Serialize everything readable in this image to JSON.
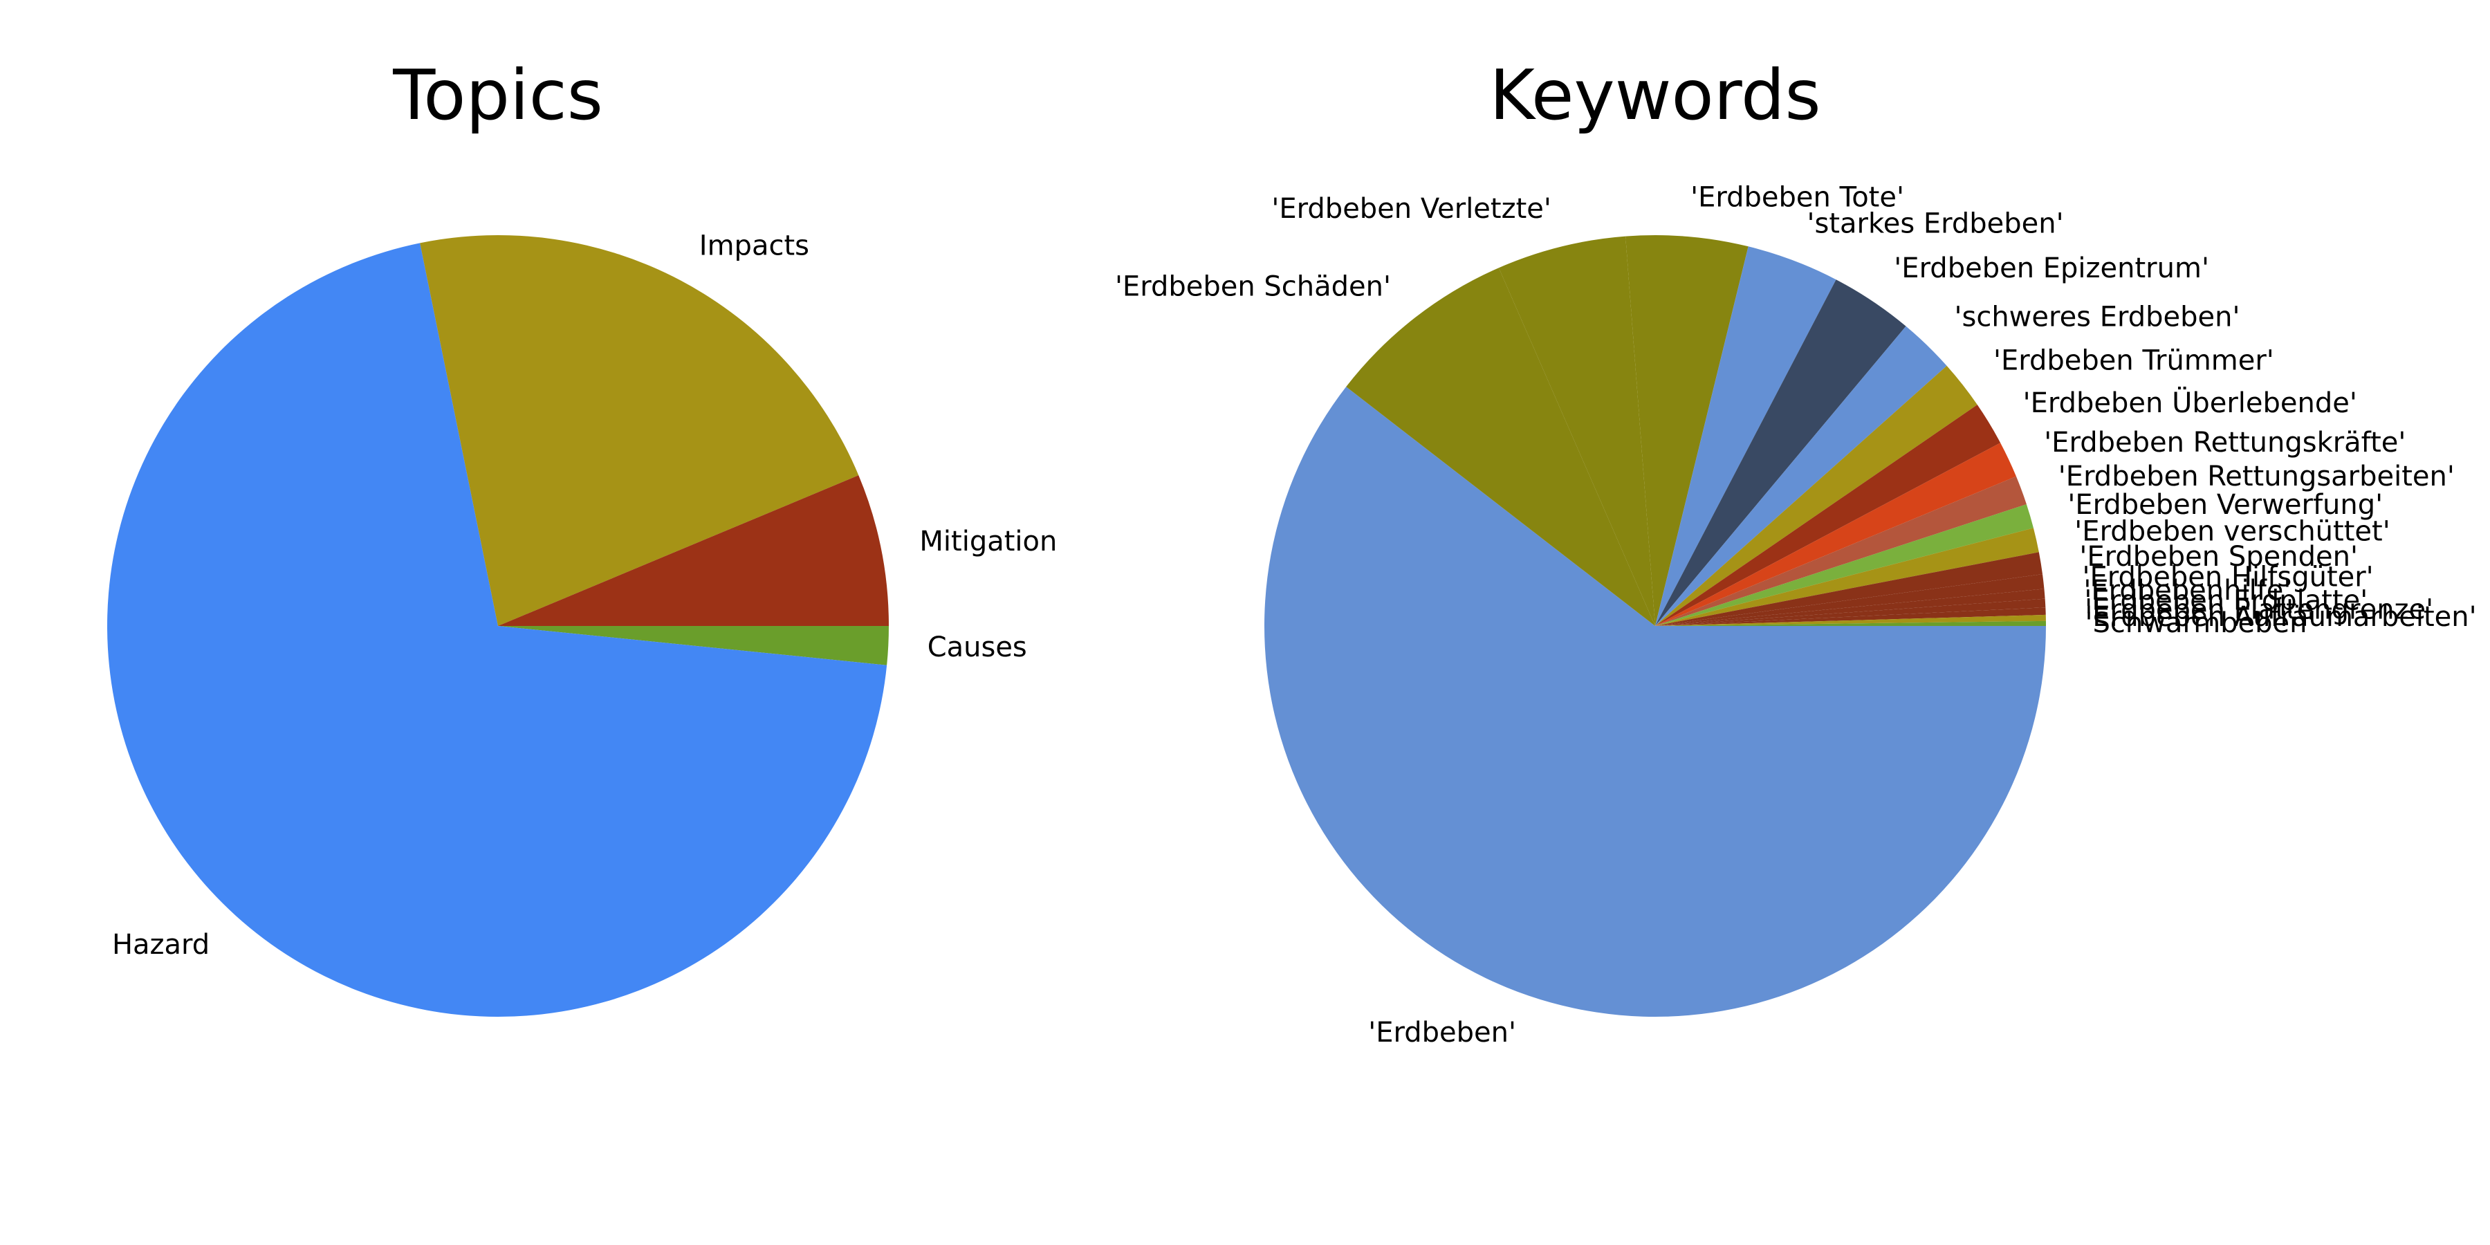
{
  "chart_data": [
    {
      "type": "pie",
      "title": "Topics",
      "start_angle_deg": 0,
      "direction": "clockwise",
      "slices": [
        {
          "label": "Causes",
          "value": 1.6,
          "color": "#6a9e2b"
        },
        {
          "label": "Hazard",
          "value": 70.2,
          "color": "#4387f4"
        },
        {
          "label": "Impacts",
          "value": 21.9,
          "color": "#a69316"
        },
        {
          "label": "Mitigation",
          "value": 6.3,
          "color": "#9c3216"
        }
      ]
    },
    {
      "type": "pie",
      "title": "Keywords",
      "start_angle_deg": 0,
      "direction": "clockwise",
      "slices": [
        {
          "label": "'Erdbeben'",
          "value": 60.0,
          "color": "#6490d4"
        },
        {
          "label": "'Erdbeben Schäden'",
          "value": 7.9,
          "color": "#878510"
        },
        {
          "label": "'Erdbeben Verletzte'",
          "value": 5.3,
          "color": "#878510"
        },
        {
          "label": "'Erdbeben Tote'",
          "value": 5.0,
          "color": "#878510"
        },
        {
          "label": "'starkes Erdbeben'",
          "value": 3.8,
          "color": "#6490d4"
        },
        {
          "label": "'Erdbeben Epizentrum'",
          "value": 3.4,
          "color": "#394963"
        },
        {
          "label": "'schweres Erdbeben'",
          "value": 2.3,
          "color": "#6490d4"
        },
        {
          "label": "'Erdbeben Trümmer'",
          "value": 2.0,
          "color": "#a69316"
        },
        {
          "label": "'Erdbeben Überlebende'",
          "value": 1.8,
          "color": "#9c3216"
        },
        {
          "label": "'Erdbeben Rettungskräfte'",
          "value": 1.5,
          "color": "#d74419"
        },
        {
          "label": "'Erdbeben Rettungsarbeiten'",
          "value": 1.2,
          "color": "#b4563c"
        },
        {
          "label": "'Erdbeben Verwerfung'",
          "value": 1.0,
          "color": "#7ab03d"
        },
        {
          "label": "'Erdbeben verschüttet'",
          "value": 1.0,
          "color": "#a69316"
        },
        {
          "label": "'Erdbeben Spenden'",
          "value": 0.9,
          "color": "#8a3218"
        },
        {
          "label": "'Erdbeben Hilfsgüter'",
          "value": 0.6,
          "color": "#8a3218"
        },
        {
          "label": "'Erdbebenhilfe'",
          "value": 0.4,
          "color": "#8a3218"
        },
        {
          "label": "'Erdbeben Erdplatte'",
          "value": 0.35,
          "color": "#8a3218"
        },
        {
          "label": "'Erdbeben Plattengrenze'",
          "value": 0.3,
          "color": "#8a3218"
        },
        {
          "label": "'Erdbeben Aufräumarbeiten'",
          "value": 0.25,
          "color": "#a69316"
        },
        {
          "label": "'Schwarmbeben'",
          "value": 0.2,
          "color": "#6a9e2b"
        }
      ]
    }
  ]
}
